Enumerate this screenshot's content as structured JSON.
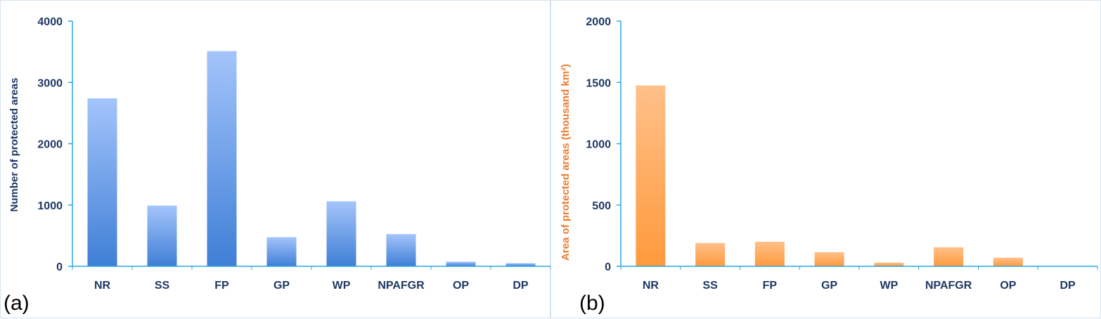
{
  "chart_data": [
    {
      "type": "bar",
      "panel_label": "(a)",
      "categories": [
        "NR",
        "SS",
        "FP",
        "GP",
        "WP",
        "NPAFGR",
        "OP",
        "DP"
      ],
      "values": [
        2740,
        990,
        3510,
        475,
        1060,
        525,
        75,
        50
      ],
      "ylabel": "Number of protected areas",
      "ylim": [
        0,
        4000
      ],
      "yticks": [
        "0",
        "1000",
        "2000",
        "3000",
        "4000"
      ],
      "ytick_values": [
        0,
        1000,
        2000,
        3000,
        4000
      ],
      "grid": false,
      "legend": "none",
      "colors": {
        "bar_top": "#a4c4fb",
        "bar_bottom": "#3f7fd6",
        "axis": "#29a8e0"
      }
    },
    {
      "type": "bar",
      "panel_label": "(b)",
      "categories": [
        "NR",
        "SS",
        "FP",
        "GP",
        "WP",
        "NPAFGR",
        "OP",
        "DP"
      ],
      "values": [
        1475,
        190,
        200,
        115,
        30,
        155,
        70,
        0
      ],
      "ylabel": "Area of protected areas (thousand km²)",
      "ylim": [
        0,
        2000
      ],
      "yticks": [
        "0",
        "500",
        "1000",
        "1500",
        "2000"
      ],
      "ytick_values": [
        0,
        500,
        1000,
        1500,
        2000
      ],
      "grid": false,
      "legend": "none",
      "colors": {
        "bar_top": "#ffc08a",
        "bar_bottom": "#ff9a3c",
        "axis": "#29a8e0"
      }
    }
  ]
}
